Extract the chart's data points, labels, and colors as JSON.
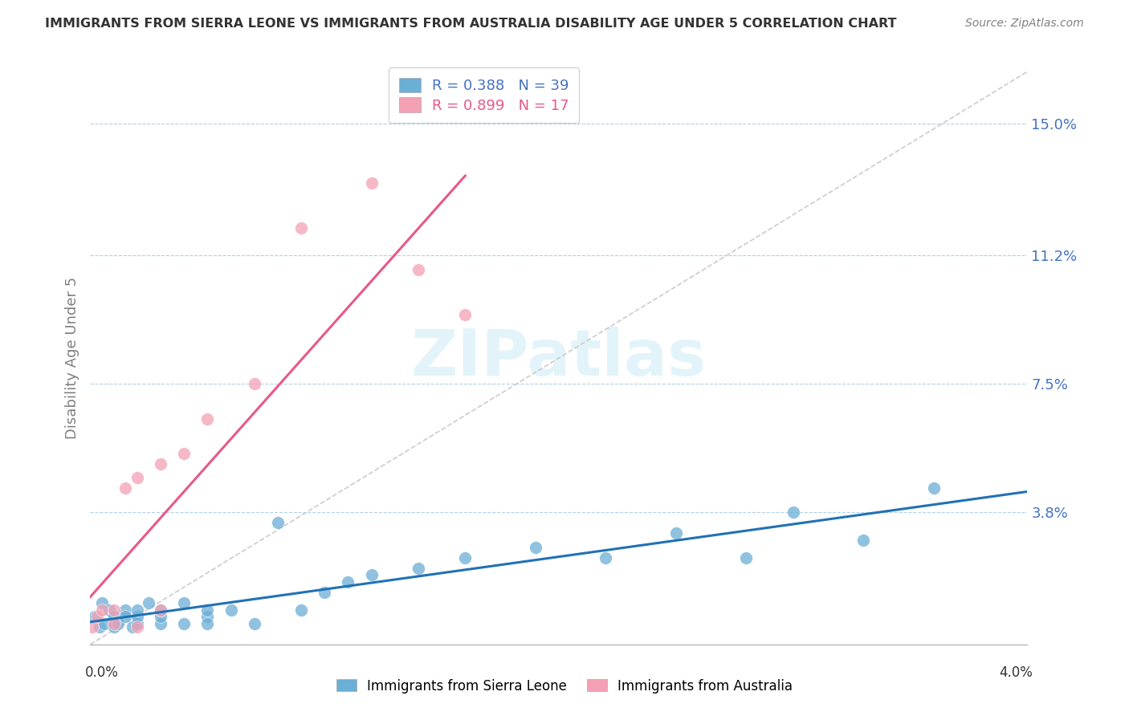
{
  "title": "IMMIGRANTS FROM SIERRA LEONE VS IMMIGRANTS FROM AUSTRALIA DISABILITY AGE UNDER 5 CORRELATION CHART",
  "source": "Source: ZipAtlas.com",
  "xmin": 0.0,
  "xmax": 0.04,
  "ymin": 0.0,
  "ymax": 0.165,
  "legend_r1": "R = 0.388   N = 39",
  "legend_r2": "R = 0.899   N = 17",
  "color_sierra": "#6baed6",
  "color_australia": "#f4a0b5",
  "color_sierra_line": "#2171b5",
  "color_australia_line": "#e8588a",
  "color_diag": "#cccccc",
  "ytick_vals": [
    0.038,
    0.075,
    0.112,
    0.15
  ],
  "ytick_labels": [
    "3.8%",
    "7.5%",
    "11.2%",
    "15.0%"
  ],
  "watermark": "ZIPatlas",
  "sl_x": [
    0.0002,
    0.0004,
    0.0005,
    0.0006,
    0.0008,
    0.001,
    0.001,
    0.0012,
    0.0015,
    0.0015,
    0.0018,
    0.002,
    0.002,
    0.002,
    0.0025,
    0.003,
    0.003,
    0.003,
    0.004,
    0.004,
    0.005,
    0.005,
    0.005,
    0.006,
    0.007,
    0.008,
    0.009,
    0.01,
    0.011,
    0.012,
    0.014,
    0.016,
    0.019,
    0.022,
    0.025,
    0.028,
    0.03,
    0.033,
    0.036
  ],
  "sl_y": [
    0.008,
    0.005,
    0.012,
    0.006,
    0.01,
    0.005,
    0.008,
    0.006,
    0.01,
    0.008,
    0.005,
    0.006,
    0.008,
    0.01,
    0.012,
    0.006,
    0.008,
    0.01,
    0.006,
    0.012,
    0.008,
    0.01,
    0.006,
    0.01,
    0.006,
    0.035,
    0.01,
    0.015,
    0.018,
    0.02,
    0.022,
    0.025,
    0.028,
    0.025,
    0.032,
    0.025,
    0.038,
    0.03,
    0.045
  ],
  "au_x": [
    0.0001,
    0.0003,
    0.0005,
    0.001,
    0.001,
    0.0015,
    0.002,
    0.002,
    0.003,
    0.003,
    0.004,
    0.005,
    0.007,
    0.009,
    0.012,
    0.014,
    0.016
  ],
  "au_y": [
    0.005,
    0.008,
    0.01,
    0.006,
    0.01,
    0.045,
    0.048,
    0.005,
    0.052,
    0.01,
    0.055,
    0.065,
    0.075,
    0.12,
    0.133,
    0.108,
    0.095
  ]
}
